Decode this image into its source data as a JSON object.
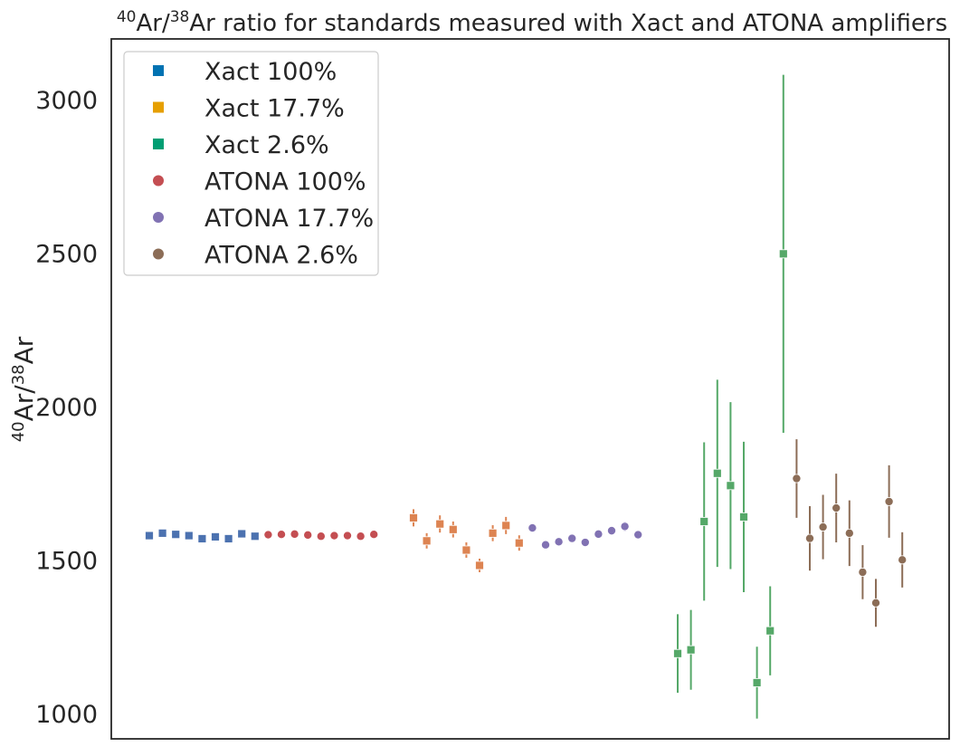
{
  "chart_data": {
    "type": "scatter",
    "title": {
      "sup1": "40",
      "part1": "Ar/",
      "sup2": "38",
      "part2": "Ar ratio for standards measured with Xact and ATONA amplifiers"
    },
    "ylabel": {
      "sup1": "40",
      "part1": "Ar/",
      "sup2": "38",
      "part2": "Ar"
    },
    "xlabel": "",
    "ylim": [
      920,
      3200
    ],
    "yticks": [
      1000,
      1500,
      2000,
      2500,
      3000
    ],
    "grid": false,
    "legend_position": "top-left",
    "series": [
      {
        "name": "Xact 100%",
        "marker": "square",
        "color": "#0072b2",
        "point_color": "#4c72b0",
        "points": [
          {
            "x": 1,
            "y": 1582,
            "err": 5
          },
          {
            "x": 2,
            "y": 1590,
            "err": 5
          },
          {
            "x": 3,
            "y": 1586,
            "err": 5
          },
          {
            "x": 4,
            "y": 1582,
            "err": 5
          },
          {
            "x": 5,
            "y": 1572,
            "err": 5
          },
          {
            "x": 6,
            "y": 1578,
            "err": 5
          },
          {
            "x": 7,
            "y": 1572,
            "err": 5
          },
          {
            "x": 8,
            "y": 1588,
            "err": 5
          },
          {
            "x": 9,
            "y": 1580,
            "err": 5
          }
        ]
      },
      {
        "name": "ATONA 100%",
        "marker": "circle",
        "color": "#c44e52",
        "point_color": "#c44e52",
        "points": [
          {
            "x": 10,
            "y": 1585,
            "err": 4
          },
          {
            "x": 11,
            "y": 1586,
            "err": 4
          },
          {
            "x": 12,
            "y": 1587,
            "err": 4
          },
          {
            "x": 13,
            "y": 1584,
            "err": 4
          },
          {
            "x": 14,
            "y": 1580,
            "err": 4
          },
          {
            "x": 15,
            "y": 1582,
            "err": 4
          },
          {
            "x": 16,
            "y": 1582,
            "err": 4
          },
          {
            "x": 17,
            "y": 1580,
            "err": 4
          },
          {
            "x": 18,
            "y": 1586,
            "err": 4
          }
        ]
      },
      {
        "name": "Xact 17.7%",
        "marker": "square",
        "color": "#e69f00",
        "point_color": "#dd8452",
        "points": [
          {
            "x": 21,
            "y": 1640,
            "err": 28
          },
          {
            "x": 22,
            "y": 1565,
            "err": 25
          },
          {
            "x": 23,
            "y": 1620,
            "err": 28
          },
          {
            "x": 24,
            "y": 1602,
            "err": 26
          },
          {
            "x": 25,
            "y": 1535,
            "err": 25
          },
          {
            "x": 26,
            "y": 1485,
            "err": 22
          },
          {
            "x": 27,
            "y": 1590,
            "err": 26
          },
          {
            "x": 28,
            "y": 1615,
            "err": 28
          },
          {
            "x": 29,
            "y": 1558,
            "err": 25
          }
        ]
      },
      {
        "name": "ATONA 17.7%",
        "marker": "circle",
        "color": "#8172b3",
        "point_color": "#8172b3",
        "points": [
          {
            "x": 30,
            "y": 1607,
            "err": 14
          },
          {
            "x": 31,
            "y": 1552,
            "err": 12
          },
          {
            "x": 32,
            "y": 1562,
            "err": 13
          },
          {
            "x": 33,
            "y": 1573,
            "err": 13
          },
          {
            "x": 34,
            "y": 1560,
            "err": 13
          },
          {
            "x": 35,
            "y": 1587,
            "err": 13
          },
          {
            "x": 36,
            "y": 1598,
            "err": 14
          },
          {
            "x": 37,
            "y": 1612,
            "err": 15
          },
          {
            "x": 38,
            "y": 1585,
            "err": 13
          }
        ]
      },
      {
        "name": "Xact 2.6%",
        "marker": "square",
        "color": "#009e73",
        "point_color": "#55a868",
        "points": [
          {
            "x": 41,
            "y": 1198,
            "err": 128
          },
          {
            "x": 42,
            "y": 1210,
            "err": 130
          },
          {
            "x": 43,
            "y": 1628,
            "err": 258
          },
          {
            "x": 44,
            "y": 1785,
            "err": 305
          },
          {
            "x": 45,
            "y": 1745,
            "err": 272
          },
          {
            "x": 46,
            "y": 1643,
            "err": 245
          },
          {
            "x": 47,
            "y": 1103,
            "err": 117
          },
          {
            "x": 48,
            "y": 1272,
            "err": 145
          },
          {
            "x": 49,
            "y": 2500,
            "err": 583
          }
        ]
      },
      {
        "name": "ATONA 2.6%",
        "marker": "circle",
        "color": "#937860",
        "point_color": "#8c6d57",
        "points": [
          {
            "x": 50,
            "y": 1768,
            "err": 128
          },
          {
            "x": 51,
            "y": 1573,
            "err": 105
          },
          {
            "x": 52,
            "y": 1610,
            "err": 105
          },
          {
            "x": 53,
            "y": 1672,
            "err": 112
          },
          {
            "x": 54,
            "y": 1590,
            "err": 107
          },
          {
            "x": 55,
            "y": 1463,
            "err": 88
          },
          {
            "x": 56,
            "y": 1363,
            "err": 78
          },
          {
            "x": 57,
            "y": 1693,
            "err": 118
          },
          {
            "x": 58,
            "y": 1503,
            "err": 90
          }
        ]
      }
    ],
    "legend_order": [
      "Xact 100%",
      "Xact 17.7%",
      "Xact 2.6%",
      "ATONA 100%",
      "ATONA 17.7%",
      "ATONA 2.6%"
    ]
  }
}
